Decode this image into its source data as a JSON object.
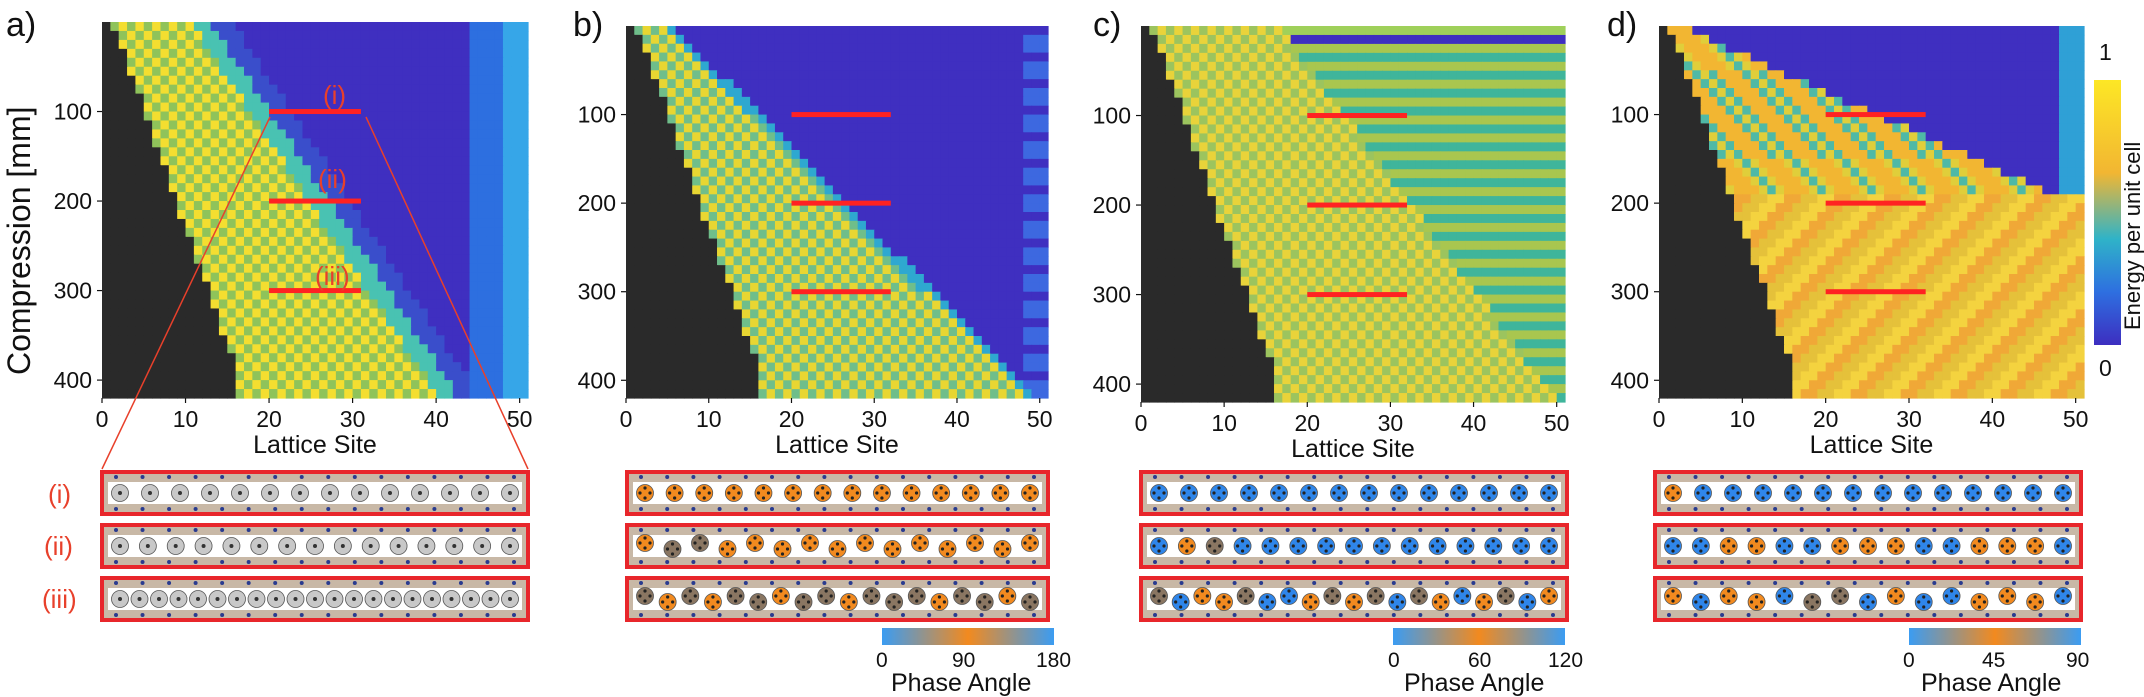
{
  "chart_data": [
    {
      "panel": "a)",
      "type": "heatmap",
      "xlabel": "Lattice Site",
      "ylabel": "Compression [mm]",
      "xticks": [
        "0",
        "10",
        "20",
        "30",
        "40",
        "50"
      ],
      "yticks": [
        "100",
        "200",
        "300",
        "400"
      ],
      "xlim": [
        0,
        51
      ],
      "ylim": [
        420,
        0
      ],
      "pattern": "checker-wedge-front",
      "regions": {
        "left_boundary_end_site": 16,
        "front_slope_sites_per_100mm": 7.1,
        "front_intercept_site": 11
      },
      "highlight_rows": [
        {
          "label": "(i)",
          "compression": 100,
          "x_range": [
            20,
            31
          ]
        },
        {
          "label": "(ii)",
          "compression": 200,
          "x_range": [
            20,
            31
          ]
        },
        {
          "label": "(iii)",
          "compression": 300,
          "x_range": [
            20,
            31
          ]
        }
      ],
      "strips": [
        {
          "label": "(i)",
          "particles": 14,
          "style": "gray"
        },
        {
          "label": "(ii)",
          "particles": 15,
          "style": "gray"
        },
        {
          "label": "(iii)",
          "particles": 21,
          "style": "gray"
        }
      ]
    },
    {
      "panel": "b)",
      "type": "heatmap",
      "xlabel": "Lattice Site",
      "xticks": [
        "0",
        "10",
        "20",
        "30",
        "40",
        "50"
      ],
      "yticks": [
        "100",
        "200",
        "300",
        "400"
      ],
      "xlim": [
        0,
        51
      ],
      "ylim": [
        420,
        0
      ],
      "pattern": "checker-wedge-diagonal",
      "highlight_rows": [
        {
          "compression": 100,
          "x_range": [
            20,
            32
          ]
        },
        {
          "compression": 200,
          "x_range": [
            20,
            32
          ]
        },
        {
          "compression": 300,
          "x_range": [
            20,
            32
          ]
        }
      ],
      "strips": [
        {
          "particles": 14,
          "style": "orange"
        },
        {
          "particles": 15,
          "style": "orange-brown"
        },
        {
          "particles": 18,
          "style": "mixed-brown"
        }
      ],
      "colorbar": {
        "label": "Phase Angle",
        "ticks": [
          "0",
          "90",
          "180"
        ],
        "colors": [
          "#3b9cf2",
          "#f28a1f",
          "#3b9cf2"
        ]
      }
    },
    {
      "panel": "c)",
      "type": "heatmap",
      "xlabel": "Lattice Site",
      "xticks": [
        "0",
        "10",
        "20",
        "30",
        "40",
        "50"
      ],
      "yticks": [
        "100",
        "200",
        "300",
        "400"
      ],
      "xlim": [
        0,
        51
      ],
      "ylim": [
        420,
        0
      ],
      "pattern": "checker-wedge-striped",
      "highlight_rows": [
        {
          "compression": 100,
          "x_range": [
            20,
            32
          ]
        },
        {
          "compression": 200,
          "x_range": [
            20,
            32
          ]
        },
        {
          "compression": 300,
          "x_range": [
            20,
            32
          ]
        }
      ],
      "strips": [
        {
          "particles": 14,
          "style": "blue"
        },
        {
          "particles": 15,
          "style": "blue-orange"
        },
        {
          "particles": 19,
          "style": "mixed-blue-orange"
        }
      ],
      "colorbar": {
        "label": "Phase Angle",
        "ticks": [
          "0",
          "60",
          "120"
        ],
        "colors": [
          "#3b9cf2",
          "#f28a1f",
          "#3b9cf2"
        ]
      }
    },
    {
      "panel": "d)",
      "type": "heatmap",
      "xlabel": "Lattice Site",
      "xticks": [
        "0",
        "10",
        "20",
        "30",
        "40",
        "50"
      ],
      "yticks": [
        "100",
        "200",
        "300",
        "400"
      ],
      "xlim": [
        0,
        51
      ],
      "ylim": [
        420,
        0
      ],
      "pattern": "wedge-bands",
      "highlight_rows": [
        {
          "compression": 100,
          "x_range": [
            20,
            32
          ]
        },
        {
          "compression": 200,
          "x_range": [
            20,
            32
          ]
        },
        {
          "compression": 300,
          "x_range": [
            20,
            32
          ]
        }
      ],
      "strips": [
        {
          "particles": 14,
          "style": "orange-then-blue"
        },
        {
          "particles": 15,
          "style": "alternating"
        },
        {
          "particles": 15,
          "style": "alternating-mixed"
        }
      ],
      "colorbar": {
        "label": "Phase Angle",
        "ticks": [
          "0",
          "45",
          "90"
        ],
        "colors": [
          "#3b9cf2",
          "#f28a1f",
          "#3b9cf2"
        ]
      },
      "energy_colorbar": {
        "label": "Energy per unit cell",
        "ticks": [
          "1",
          "0"
        ],
        "colors": [
          "#fde725",
          "#f2b632",
          "#2fb3c8",
          "#2e6fe0",
          "#3d2ec0"
        ]
      }
    }
  ],
  "labels": {
    "panel_a": "a)",
    "panel_b": "b)",
    "panel_c": "c)",
    "panel_d": "d)",
    "row_i": "(i)",
    "row_ii": "(ii)",
    "row_iii": "(iii)",
    "ylabel": "Compression [mm]",
    "xlabel": "Lattice Site",
    "phase_angle": "Phase Angle",
    "energy_label": "Energy per unit cell",
    "energy_top": "1",
    "energy_bottom": "0",
    "cb_b": [
      "0",
      "90",
      "180"
    ],
    "cb_c": [
      "0",
      "60",
      "120"
    ],
    "cb_d": [
      "0",
      "45",
      "90"
    ],
    "ticks_x": [
      "0",
      "10",
      "20",
      "30",
      "40",
      "50"
    ],
    "ticks_y": [
      "100",
      "200",
      "300",
      "400"
    ]
  },
  "colors": {
    "dark": "#2a2a2a",
    "deep_blue": "#3f2fc0",
    "yellow": "#f4de30",
    "green": "#8fc35a",
    "highlight_red": "#ff2222",
    "strip_border": "#e8262b",
    "strip_tan": "#c8b8a6",
    "orange": "#f28a1f",
    "blue": "#2f86ea",
    "brown": "#8a7662",
    "gray_particle": "#c8c8c8"
  }
}
